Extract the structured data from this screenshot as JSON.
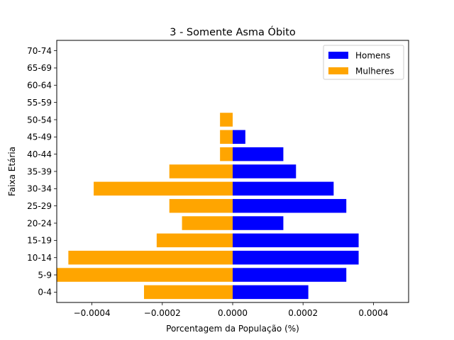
{
  "chart_data": {
    "type": "bar",
    "orientation": "horizontal",
    "title": "3 - Somente Asma Óbito",
    "xlabel": "Porcentagem da População (%)",
    "ylabel": "Faixa Etária",
    "xlim": [
      -0.0005,
      0.0005
    ],
    "x_ticks": [
      -0.0004,
      -0.0002,
      0.0,
      0.0002,
      0.0004
    ],
    "x_tick_labels": [
      "−0.0004",
      "−0.0002",
      "0.0000",
      "0.0002",
      "0.0004"
    ],
    "categories": [
      "0-4",
      "5-9",
      "10-14",
      "15-19",
      "20-24",
      "25-29",
      "30-34",
      "35-39",
      "40-44",
      "45-49",
      "50-54",
      "55-59",
      "60-64",
      "65-69",
      "70-74"
    ],
    "series": [
      {
        "name": "Homens",
        "color": "#0000ff",
        "values": [
          0.000215,
          0.000323,
          0.000358,
          0.000358,
          0.000144,
          0.000323,
          0.000287,
          0.00018,
          0.000144,
          3.6e-05,
          0,
          0,
          0,
          0,
          0
        ]
      },
      {
        "name": "Mulheres",
        "color": "#ffa500",
        "values": [
          -0.000252,
          -0.000503,
          -0.000467,
          -0.000216,
          -0.000144,
          -0.00018,
          -0.000395,
          -0.00018,
          -3.6e-05,
          -3.6e-05,
          -3.6e-05,
          0,
          0,
          0,
          0
        ]
      }
    ],
    "legend_position": "top-right",
    "grid": false
  }
}
